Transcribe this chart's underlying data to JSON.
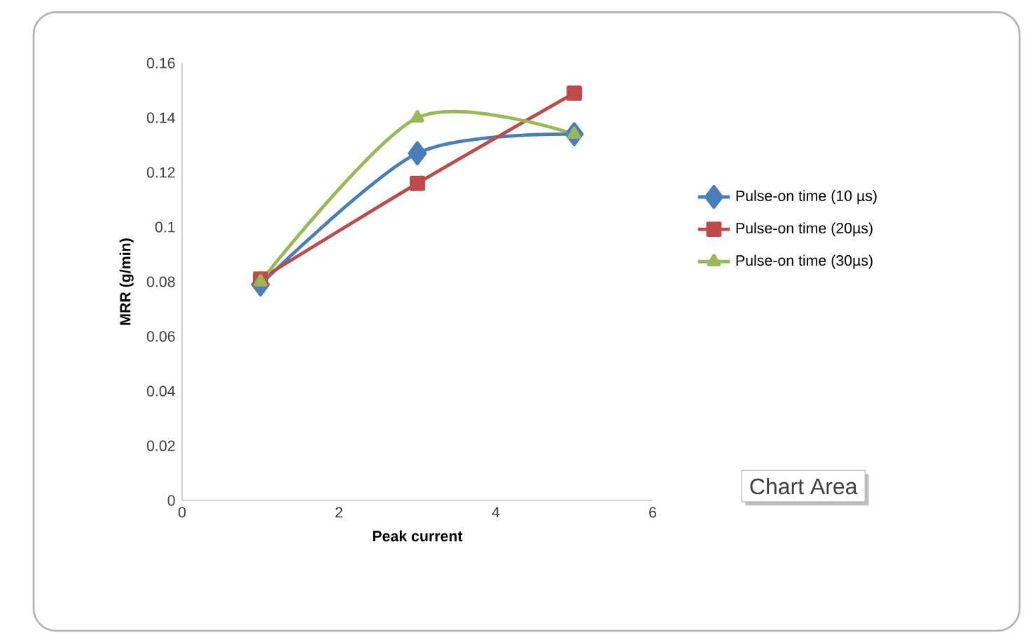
{
  "chart_data": {
    "type": "line",
    "xlabel": "Peak current",
    "ylabel": "MRR (g/min)",
    "x": [
      1,
      3,
      5
    ],
    "xlim": [
      0,
      6
    ],
    "xticks": [
      0,
      2,
      4,
      6
    ],
    "ylim": [
      0,
      0.16
    ],
    "yticks": [
      0,
      0.02,
      0.04,
      0.06,
      0.08,
      0.1,
      0.12,
      0.14,
      0.16
    ],
    "grid": false,
    "legend": "right",
    "series": [
      {
        "name": "Pulse-on time (10 µs)",
        "color": "#4a7ebb",
        "marker": "diamond",
        "values": [
          0.079,
          0.127,
          0.134
        ]
      },
      {
        "name": "Pulse-on time (20µs)",
        "color": "#be4b48",
        "marker": "square",
        "values": [
          0.081,
          0.116,
          0.149
        ]
      },
      {
        "name": "Pulse-on time (30µs)",
        "color": "#98b954",
        "marker": "triangle",
        "values": [
          0.08,
          0.14,
          0.134
        ]
      }
    ],
    "annotations": [
      "Chart Area"
    ]
  }
}
